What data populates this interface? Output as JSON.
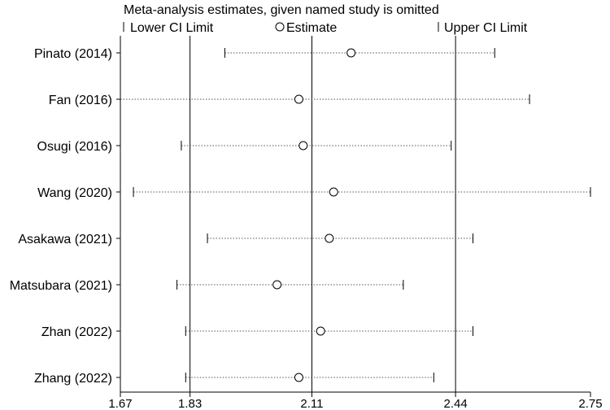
{
  "chart_data": {
    "type": "forest",
    "title": "Meta-analysis estimates, given named study is omitted",
    "legend": {
      "lower": "Lower CI Limit",
      "estimate": "Estimate",
      "upper": "Upper CI Limit",
      "placement": "top"
    },
    "xlim": [
      1.67,
      2.75
    ],
    "xticks": [
      1.67,
      1.83,
      2.11,
      2.44,
      2.75
    ],
    "xtick_labels": [
      "1.67",
      "1.83",
      "2.11",
      "2.44",
      "2.75"
    ],
    "reference_lines": [
      1.83,
      2.11,
      2.44
    ],
    "studies": [
      {
        "label": "Pinato (2014)",
        "lower": 1.91,
        "estimate": 2.2,
        "upper": 2.53
      },
      {
        "label": "Fan (2016)",
        "lower": 1.67,
        "estimate": 2.08,
        "upper": 2.61
      },
      {
        "label": "Osugi (2016)",
        "lower": 1.81,
        "estimate": 2.09,
        "upper": 2.43
      },
      {
        "label": "Wang (2020)",
        "lower": 1.7,
        "estimate": 2.16,
        "upper": 2.75
      },
      {
        "label": "Asakawa (2021)",
        "lower": 1.87,
        "estimate": 2.15,
        "upper": 2.48
      },
      {
        "label": "Matsubara (2021)",
        "lower": 1.8,
        "estimate": 2.03,
        "upper": 2.32
      },
      {
        "label": "Zhan (2022)",
        "lower": 1.82,
        "estimate": 2.13,
        "upper": 2.48
      },
      {
        "label": "Zhang (2022)",
        "lower": 1.82,
        "estimate": 2.08,
        "upper": 2.39
      }
    ]
  }
}
